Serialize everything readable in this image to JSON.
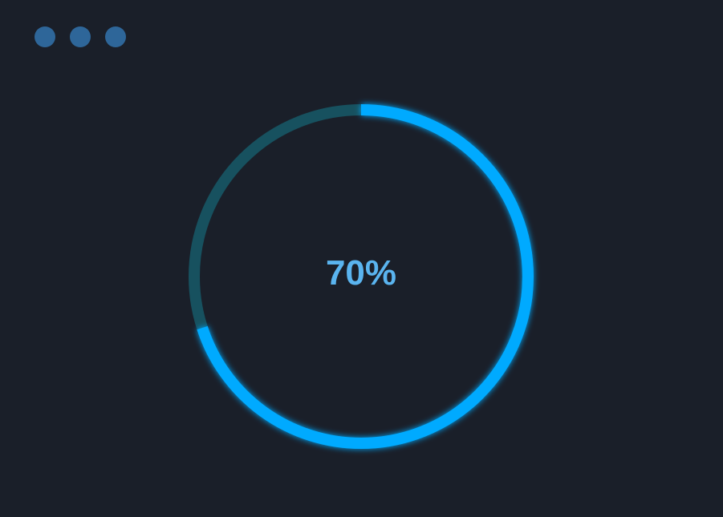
{
  "window_controls": [
    {
      "name": "dot-1"
    },
    {
      "name": "dot-2"
    },
    {
      "name": "dot-3"
    }
  ],
  "progress": {
    "value": 70,
    "label": "70%",
    "colors": {
      "progress": "#00aaff",
      "track": "#17515f",
      "text": "#5ab4ef",
      "background": "#1a1f29",
      "dots": "#2e6699"
    }
  }
}
